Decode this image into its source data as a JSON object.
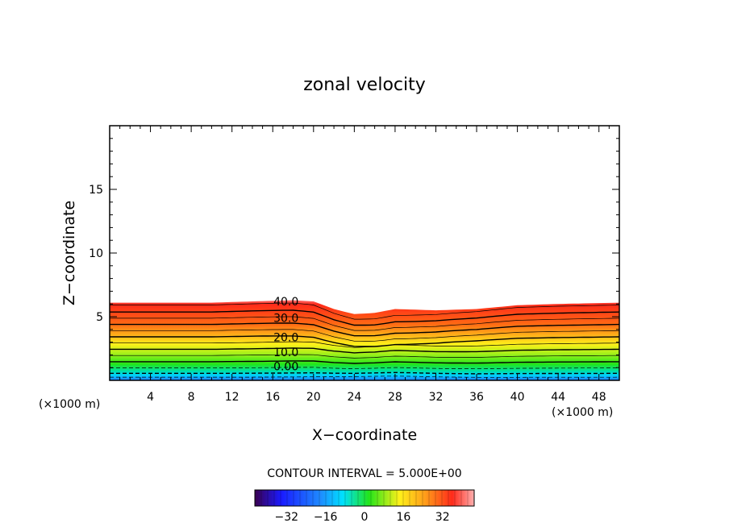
{
  "chart_data": {
    "type": "contour",
    "title": "zonal velocity",
    "xlabel": "X−coordinate",
    "ylabel": "Z−coordinate",
    "x_unit_left": "(×1000 m)",
    "x_unit_right": "(×1000 m)",
    "xlim": [
      0,
      50
    ],
    "ylim": [
      0,
      20
    ],
    "x_ticks": [
      4,
      8,
      12,
      16,
      20,
      24,
      28,
      32,
      36,
      40,
      44,
      48
    ],
    "y_ticks": [
      5,
      10,
      15
    ],
    "contour_interval_text": "CONTOUR INTERVAL = 5.000E+00",
    "contour_labels": [
      {
        "text": "40.0",
        "x": 17.3,
        "z": 6.2
      },
      {
        "text": "30.0",
        "x": 17.3,
        "z": 4.9
      },
      {
        "text": "20.0",
        "x": 17.3,
        "z": 3.4
      },
      {
        "text": "10.0",
        "x": 17.3,
        "z": 2.2
      },
      {
        "text": "0.00",
        "x": 17.3,
        "z": 1.1
      }
    ],
    "top_boundary_z": [
      [
        0,
        6.1
      ],
      [
        10,
        6.1
      ],
      [
        14,
        6.2
      ],
      [
        18,
        6.3
      ],
      [
        20,
        6.2
      ],
      [
        22,
        5.6
      ],
      [
        24,
        5.2
      ],
      [
        26,
        5.3
      ],
      [
        28,
        5.6
      ],
      [
        32,
        5.5
      ],
      [
        36,
        5.6
      ],
      [
        40,
        5.9
      ],
      [
        44,
        6.0
      ],
      [
        50,
        6.1
      ]
    ],
    "colorbar": {
      "ticks": [
        "−32",
        "−16",
        "0",
        "16",
        "32"
      ],
      "tick_values": [
        -32,
        -16,
        0,
        16,
        32
      ],
      "range": [
        -45,
        45
      ]
    },
    "colors": {
      "red": "#ff2a1a",
      "orange": "#ff9a1a",
      "yellow": "#ffee1a",
      "green": "#22e51a",
      "cyan": "#00ccff",
      "blue": "#1e5cff"
    }
  }
}
